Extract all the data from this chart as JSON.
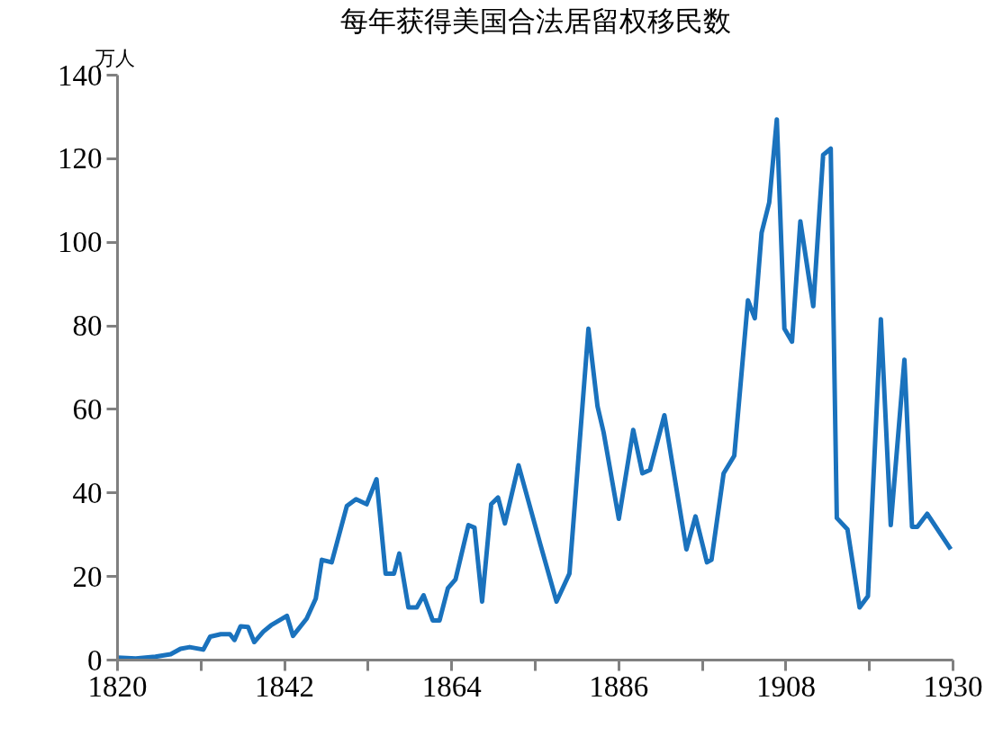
{
  "chart_data": {
    "type": "line",
    "title": "每年获得美国合法居留权移民数",
    "ylabel": "万人",
    "x": [
      1820,
      1822.4,
      1825,
      1827,
      1828.3,
      1829.5,
      1831.3,
      1832.2,
      1833.6,
      1834.8,
      1835.4,
      1836.2,
      1837.2,
      1838,
      1839.2,
      1840.2,
      1842.3,
      1843.1,
      1844.9,
      1846.1,
      1846.9,
      1848.2,
      1850.2,
      1851.4,
      1852.8,
      1854.1,
      1855.3,
      1856.4,
      1857.1,
      1858.3,
      1859.4,
      1860.3,
      1861.5,
      1862.4,
      1863.5,
      1864.5,
      1866.2,
      1867,
      1868,
      1869.2,
      1870.1,
      1871,
      1872.8,
      1875.7,
      1877.8,
      1879.5,
      1882,
      1883.2,
      1884,
      1886,
      1887.9,
      1889.1,
      1890.1,
      1892,
      1894.9,
      1896.1,
      1897.6,
      1898.2,
      1899.8,
      1901.2,
      1903,
      1903.9,
      1904.8,
      1905.8,
      1906.8,
      1907.8,
      1908.8,
      1909.9,
      1911.6,
      1912.9,
      1913.9,
      1914.7,
      1916.1,
      1917.7,
      1918.8,
      1920.5,
      1921.8,
      1923.6,
      1924.6,
      1925.3,
      1926.6,
      1929.7
    ],
    "series": [
      {
        "color": "#1a72bd",
        "values": [
          0.6,
          0.4,
          0.8,
          1.4,
          2.7,
          3.1,
          2.5,
          5.6,
          6.2,
          6.2,
          4.8,
          8.1,
          7.9,
          4.3,
          6.8,
          8.3,
          10.6,
          5.8,
          9.9,
          14.7,
          24,
          23.4,
          36.9,
          38.5,
          37.3,
          43.3,
          20.7,
          20.7,
          25.5,
          12.6,
          12.6,
          15.5,
          9.5,
          9.5,
          17.2,
          19.3,
          32.3,
          31.7,
          14,
          37.3,
          38.9,
          32.7,
          46.6,
          27.5,
          14,
          20.7,
          79.3,
          60.7,
          54.5,
          33.8,
          55.1,
          44.7,
          45.5,
          58.6,
          26.5,
          34.4,
          23.4,
          24,
          44.7,
          48.9,
          86.1,
          81.8,
          102.3,
          109.5,
          129.4,
          79.3,
          76.2,
          105,
          84.7,
          120.9,
          122.4,
          34,
          31.3,
          12.6,
          15.3,
          81.6,
          32.3,
          71.9,
          31.9,
          31.9,
          35,
          26.5
        ]
      }
    ],
    "xlim": [
      1820,
      1930
    ],
    "ylim": [
      0,
      140
    ],
    "xticks": [
      1820,
      {
        "value": 1831,
        "label": null
      },
      1842,
      {
        "value": 1853,
        "label": null
      },
      1864,
      {
        "value": 1875,
        "label": null
      },
      1886,
      {
        "value": 1897,
        "label": null
      },
      1908,
      {
        "value": 1919,
        "label": null
      },
      1930
    ],
    "yticks": [
      0,
      20,
      40,
      60,
      80,
      100,
      120,
      140
    ],
    "grid": false,
    "marker": "none",
    "line_style": "solid"
  }
}
